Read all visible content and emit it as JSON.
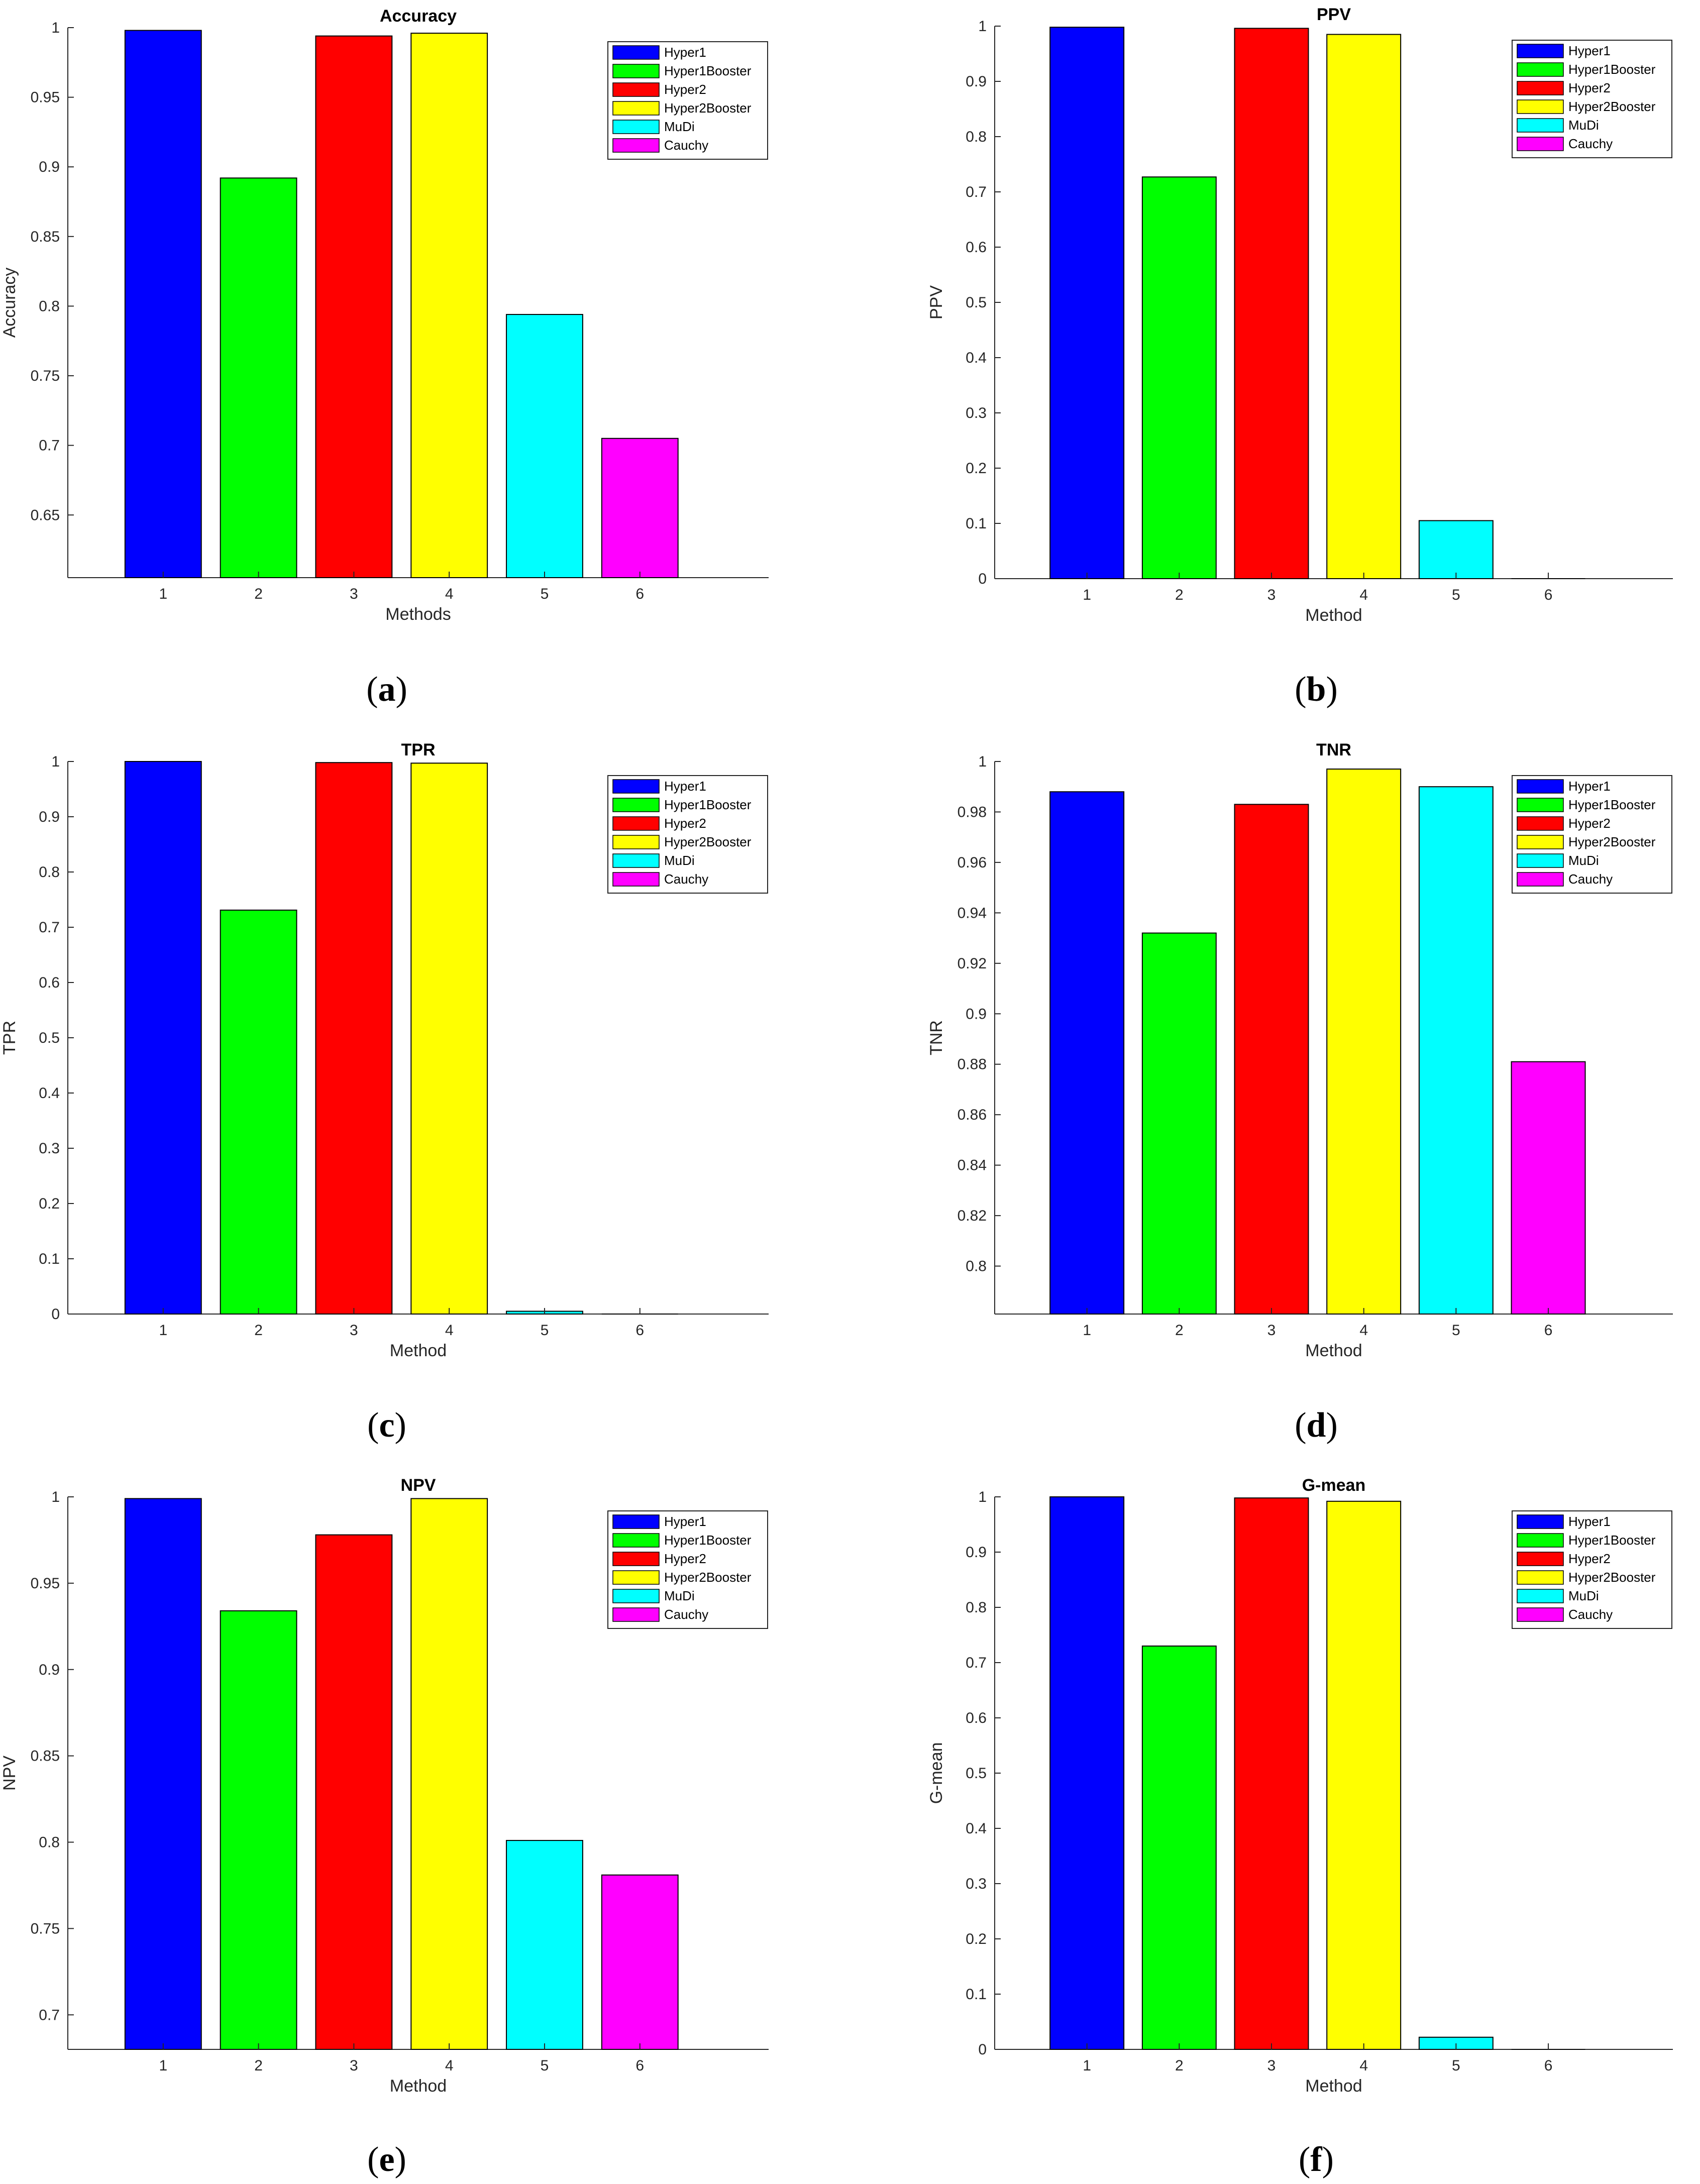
{
  "legend": [
    "Hyper1",
    "Hyper1Booster",
    "Hyper2",
    "Hyper2Booster",
    "MuDi",
    "Cauchy"
  ],
  "colors": [
    "#0000FF",
    "#00FF00",
    "#FF0000",
    "#FFFF00",
    "#00FFFF",
    "#FF00FF"
  ],
  "chart_data": [
    {
      "panel": "a",
      "type": "bar",
      "title": "Accuracy",
      "xlabel": "Methods",
      "ylabel": "Accuracy",
      "categories": [
        "1",
        "2",
        "3",
        "4",
        "5",
        "6"
      ],
      "values": [
        0.998,
        0.892,
        0.994,
        0.996,
        0.794,
        0.705
      ],
      "ylim": [
        0.605,
        1.0
      ],
      "yticks": [
        0.65,
        0.7,
        0.75,
        0.8,
        0.85,
        0.9,
        0.95,
        1
      ],
      "ytick_labels": [
        "0.65",
        "0.7",
        "0.75",
        "0.8",
        "0.85",
        "0.9",
        "0.95",
        "1"
      ],
      "legend_position": "top-right"
    },
    {
      "panel": "b",
      "type": "bar",
      "title": "PPV",
      "xlabel": "Method",
      "ylabel": "PPV",
      "categories": [
        "1",
        "2",
        "3",
        "4",
        "5",
        "6"
      ],
      "values": [
        0.998,
        0.727,
        0.996,
        0.985,
        0.105,
        0.0
      ],
      "ylim": [
        0,
        1.0
      ],
      "yticks": [
        0,
        0.1,
        0.2,
        0.3,
        0.4,
        0.5,
        0.6,
        0.7,
        0.8,
        0.9,
        1
      ],
      "ytick_labels": [
        "0",
        "0.1",
        "0.2",
        "0.3",
        "0.4",
        "0.5",
        "0.6",
        "0.7",
        "0.8",
        "0.9",
        "1"
      ],
      "legend_position": "top-right"
    },
    {
      "panel": "c",
      "type": "bar",
      "title": "TPR",
      "xlabel": "Method",
      "ylabel": "TPR",
      "categories": [
        "1",
        "2",
        "3",
        "4",
        "5",
        "6"
      ],
      "values": [
        1.0,
        0.731,
        0.998,
        0.997,
        0.005,
        0.0
      ],
      "ylim": [
        0,
        1.0
      ],
      "yticks": [
        0,
        0.1,
        0.2,
        0.3,
        0.4,
        0.5,
        0.6,
        0.7,
        0.8,
        0.9,
        1
      ],
      "ytick_labels": [
        "0",
        "0.1",
        "0.2",
        "0.3",
        "0.4",
        "0.5",
        "0.6",
        "0.7",
        "0.8",
        "0.9",
        "1"
      ],
      "legend_position": "top-right"
    },
    {
      "panel": "d",
      "type": "bar",
      "title": "TNR",
      "xlabel": "Method",
      "ylabel": "TNR",
      "categories": [
        "1",
        "2",
        "3",
        "4",
        "5",
        "6"
      ],
      "values": [
        0.988,
        0.932,
        0.983,
        0.997,
        0.99,
        0.881
      ],
      "ylim": [
        0.781,
        1.0
      ],
      "yticks": [
        0.8,
        0.82,
        0.84,
        0.86,
        0.88,
        0.9,
        0.92,
        0.94,
        0.96,
        0.98,
        1
      ],
      "ytick_labels": [
        "0.8",
        "0.82",
        "0.84",
        "0.86",
        "0.88",
        "0.9",
        "0.92",
        "0.94",
        "0.96",
        "0.98",
        "1"
      ],
      "legend_position": "top-right"
    },
    {
      "panel": "e",
      "type": "bar",
      "title": "NPV",
      "xlabel": "Method",
      "ylabel": "NPV",
      "categories": [
        "1",
        "2",
        "3",
        "4",
        "5",
        "6"
      ],
      "values": [
        0.999,
        0.934,
        0.978,
        0.999,
        0.801,
        0.781
      ],
      "ylim": [
        0.68,
        1.0
      ],
      "yticks": [
        0.7,
        0.75,
        0.8,
        0.85,
        0.9,
        0.95,
        1
      ],
      "ytick_labels": [
        "0.7",
        "0.75",
        "0.8",
        "0.85",
        "0.9",
        "0.95",
        "1"
      ],
      "legend_position": "top-right"
    },
    {
      "panel": "f",
      "type": "bar",
      "title": "G-mean",
      "xlabel": "Method",
      "ylabel": "G-mean",
      "categories": [
        "1",
        "2",
        "3",
        "4",
        "5",
        "6"
      ],
      "values": [
        1.0,
        0.73,
        0.998,
        0.992,
        0.022,
        0.0
      ],
      "ylim": [
        0,
        1.0
      ],
      "yticks": [
        0,
        0.1,
        0.2,
        0.3,
        0.4,
        0.5,
        0.6,
        0.7,
        0.8,
        0.9,
        1
      ],
      "ytick_labels": [
        "0",
        "0.1",
        "0.2",
        "0.3",
        "0.4",
        "0.5",
        "0.6",
        "0.7",
        "0.8",
        "0.9",
        "1"
      ],
      "legend_position": "top-right"
    }
  ],
  "captions": [
    {
      "open": "(",
      "letter": "a",
      "close": ")"
    },
    {
      "open": "(",
      "letter": "b",
      "close": ")"
    },
    {
      "open": "(",
      "letter": "c",
      "close": ")"
    },
    {
      "open": "(",
      "letter": "d",
      "close": ")"
    },
    {
      "open": "(",
      "letter": "e",
      "close": ")"
    },
    {
      "open": "(",
      "letter": "f",
      "close": ")"
    }
  ]
}
